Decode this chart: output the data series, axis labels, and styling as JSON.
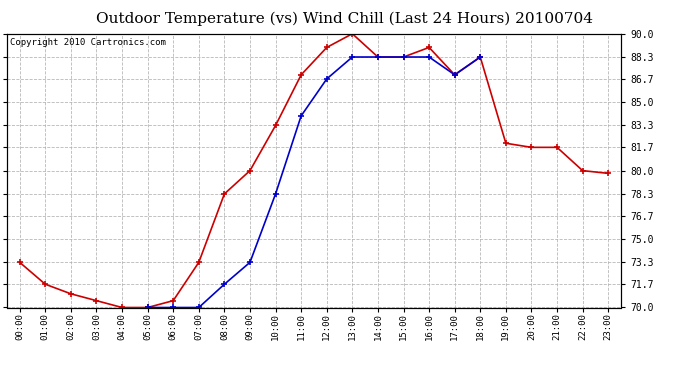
{
  "title": "Outdoor Temperature (vs) Wind Chill (Last 24 Hours) 20100704",
  "copyright": "Copyright 2010 Cartronics.com",
  "x_labels": [
    "00:00",
    "01:00",
    "02:00",
    "03:00",
    "04:00",
    "05:00",
    "06:00",
    "07:00",
    "08:00",
    "09:00",
    "10:00",
    "11:00",
    "12:00",
    "13:00",
    "14:00",
    "15:00",
    "16:00",
    "17:00",
    "18:00",
    "19:00",
    "20:00",
    "21:00",
    "22:00",
    "23:00"
  ],
  "temp_red": [
    73.3,
    71.7,
    71.0,
    70.5,
    70.0,
    70.0,
    70.5,
    73.3,
    78.3,
    80.0,
    83.3,
    87.0,
    89.0,
    90.0,
    88.3,
    88.3,
    89.0,
    87.0,
    88.3,
    82.0,
    81.7,
    81.7,
    80.0,
    79.8
  ],
  "wind_blue": [
    null,
    null,
    null,
    null,
    null,
    70.0,
    70.0,
    70.0,
    71.7,
    73.3,
    78.3,
    84.0,
    86.7,
    88.3,
    88.3,
    88.3,
    88.3,
    87.0,
    88.3,
    null,
    null,
    null,
    null,
    null
  ],
  "ylim": [
    70.0,
    90.0
  ],
  "yticks": [
    70.0,
    71.7,
    73.3,
    75.0,
    76.7,
    78.3,
    80.0,
    81.7,
    83.3,
    85.0,
    86.7,
    88.3,
    90.0
  ],
  "bg_color": "#ffffff",
  "plot_bg": "#ffffff",
  "grid_color": "#b0b0b0",
  "red_color": "#cc0000",
  "blue_color": "#0000cc",
  "title_fontsize": 11,
  "copyright_fontsize": 6.5
}
